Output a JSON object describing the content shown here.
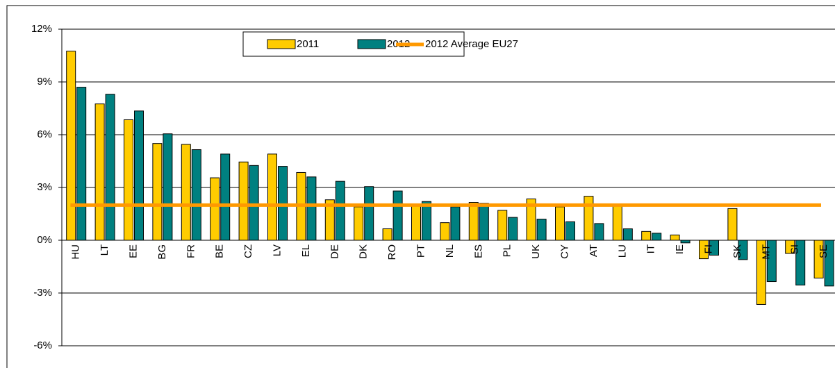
{
  "chart_data": {
    "type": "bar",
    "categories": [
      "HU",
      "LT",
      "EE",
      "BG",
      "FR",
      "BE",
      "CZ",
      "LV",
      "EL",
      "DE",
      "DK",
      "RO",
      "PT",
      "NL",
      "ES",
      "PL",
      "UK",
      "CY",
      "AT",
      "LU",
      "IT",
      "IE",
      "FI",
      "SK",
      "MT",
      "SI",
      "SE"
    ],
    "series": [
      {
        "name": "2011",
        "color": "#ffcc00",
        "values": [
          10.75,
          7.75,
          6.85,
          5.5,
          5.45,
          3.55,
          4.45,
          4.9,
          3.85,
          2.3,
          1.9,
          0.65,
          2.0,
          1.0,
          2.15,
          1.7,
          2.35,
          1.9,
          2.5,
          2.0,
          0.5,
          0.3,
          -1.05,
          1.8,
          -3.65,
          -0.75,
          -2.15
        ]
      },
      {
        "name": "2012",
        "color": "#008080",
        "values": [
          8.7,
          8.3,
          7.35,
          6.05,
          5.15,
          4.9,
          4.25,
          4.2,
          3.6,
          3.35,
          3.05,
          2.8,
          2.2,
          1.9,
          2.1,
          1.3,
          1.2,
          1.05,
          0.95,
          0.65,
          0.4,
          -0.15,
          -0.85,
          -1.1,
          -2.35,
          -2.55,
          -2.6
        ]
      }
    ],
    "reference_line": {
      "name": "2012 Average EU27",
      "value": 2.0,
      "color": "#ff9900"
    },
    "ylim": [
      -6,
      12
    ],
    "yticks": [
      {
        "value": -6,
        "label": "-6%"
      },
      {
        "value": -3,
        "label": "-3%"
      },
      {
        "value": 0,
        "label": "0%"
      },
      {
        "value": 3,
        "label": "3%"
      },
      {
        "value": 6,
        "label": "6%"
      },
      {
        "value": 9,
        "label": "9%"
      },
      {
        "value": 12,
        "label": "12%"
      }
    ],
    "grid": true
  }
}
